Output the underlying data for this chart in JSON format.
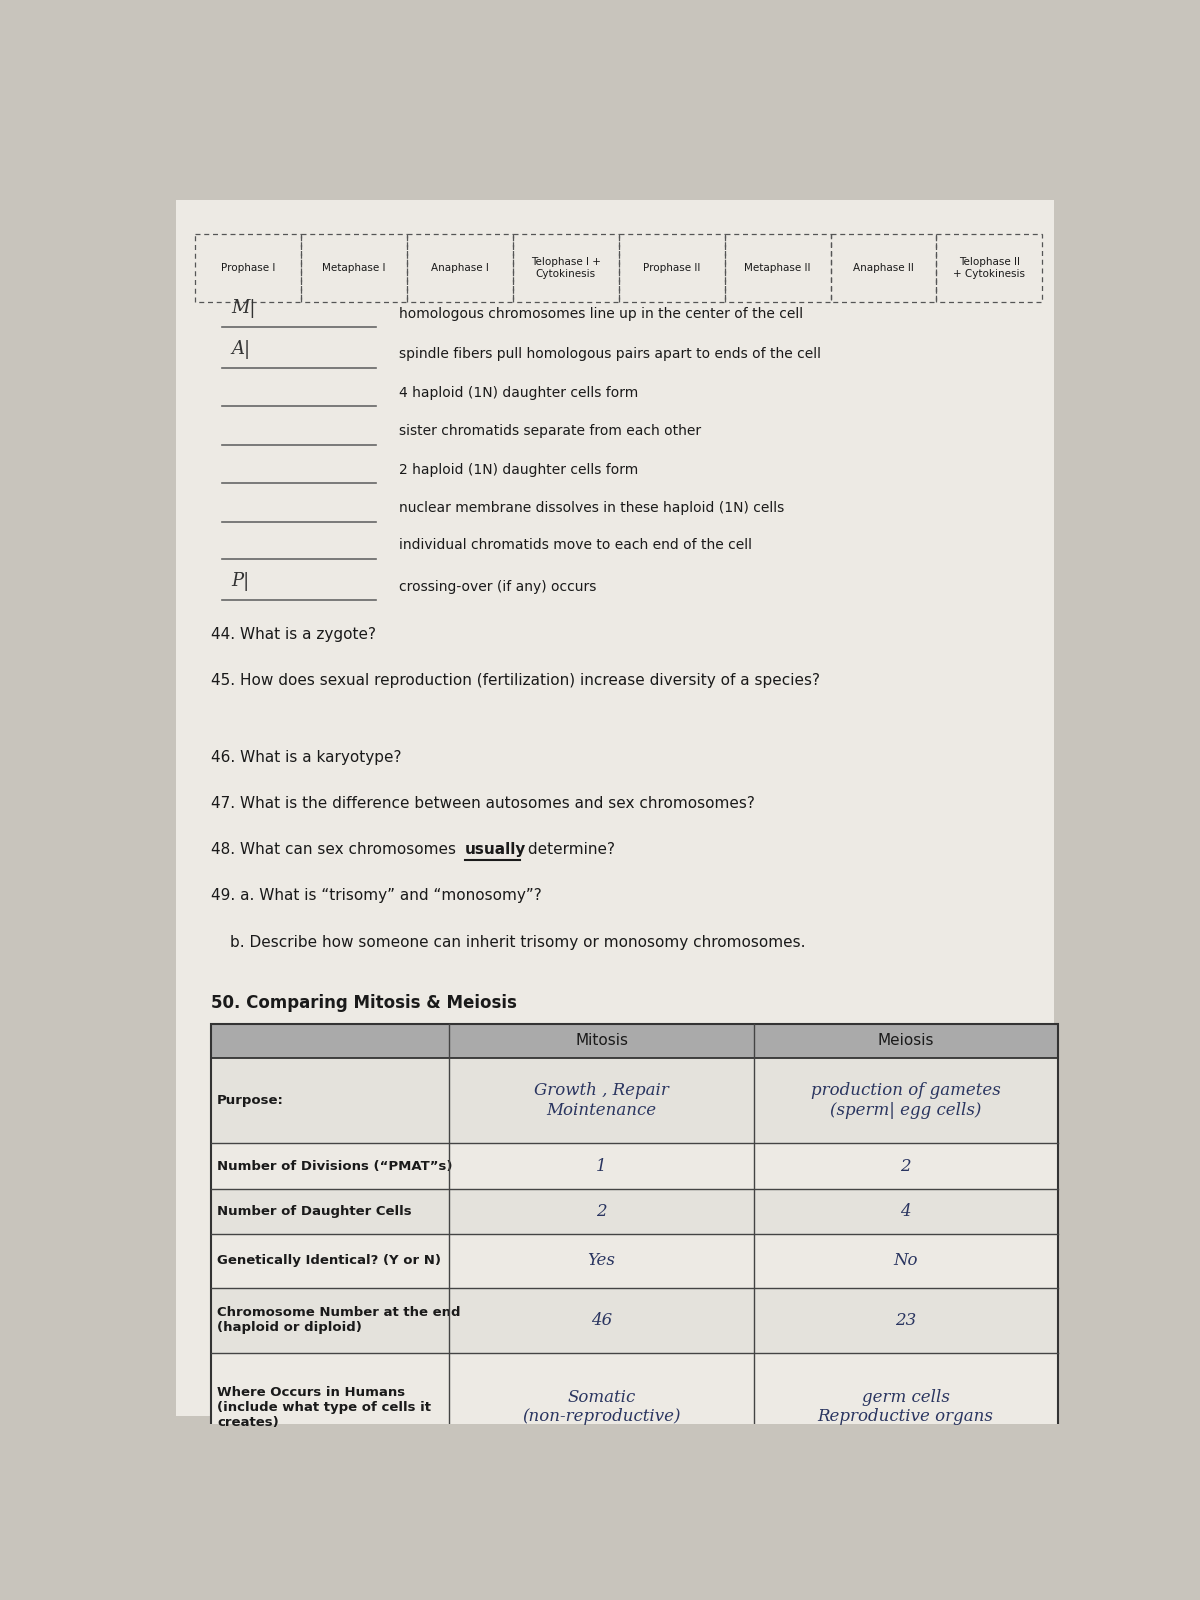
{
  "bg_color": "#c8c4bc",
  "paper_color": "#edeae4",
  "phases_row": [
    "Prophase I",
    "Metaphase I",
    "Anaphase I",
    "Telophase I +\nCytokinesis",
    "Prophase II",
    "Metaphase II",
    "Anaphase II",
    "Telophase II\n+ Cytokinesis"
  ],
  "matching_items": [
    "homologous chromosomes line up in the center of the cell",
    "spindle fibers pull homologous pairs apart to ends of the cell",
    "4 haploid (1N) daughter cells form",
    "sister chromatids separate from each other",
    "2 haploid (1N) daughter cells form",
    "nuclear membrane dissolves in these haploid (1N) cells",
    "individual chromatids move to each end of the cell",
    "crossing-over (if any) occurs"
  ],
  "hw_labels": [
    "M|",
    "A|",
    "",
    "",
    "",
    "",
    "",
    "P|"
  ],
  "q44": "44. What is a zygote?",
  "q45": "45. How does sexual reproduction (fertilization) increase diversity of a species?",
  "q46": "46. What is a karyotype?",
  "q47": "47. What is the difference between autosomes and sex chromosomes?",
  "q48_pre": "48. What can sex chromosomes ",
  "q48_ul": "usually",
  "q48_post": " determine?",
  "q49a": "49. a. What is “trisomy” and “monosomy”?",
  "q49b": "    b. Describe how someone can inherit trisomy or monosomy chromosomes.",
  "q50_title": "50. Comparing Mitosis & Meiosis",
  "table_col0_labels": [
    "Purpose:",
    "Number of Divisions (“PMAT”s)",
    "Number of Daughter Cells",
    "Genetically Identical? (Y or N)",
    "Chromosome Number at the end\n(haploid or diploid)",
    "Where Occurs in Humans\n(include what type of cells it\ncreates)"
  ],
  "table_mitosis": [
    "Growth , Repair\nMointenance",
    "1",
    "2",
    "Yes",
    "46",
    "Somatic\n(non-reproductive)"
  ],
  "table_meiosis": [
    "production of gametes\n(sperm| egg cells)",
    "2",
    "4",
    "No",
    "23",
    "germ cells\nReproductive organs"
  ],
  "header_gray": "#aaaaaa",
  "row_bg_even": "#e4e2dc",
  "row_bg_odd": "#edeae4",
  "text_dark": "#1a1a1a",
  "text_hw": "#2a3560",
  "line_color": "#666666"
}
